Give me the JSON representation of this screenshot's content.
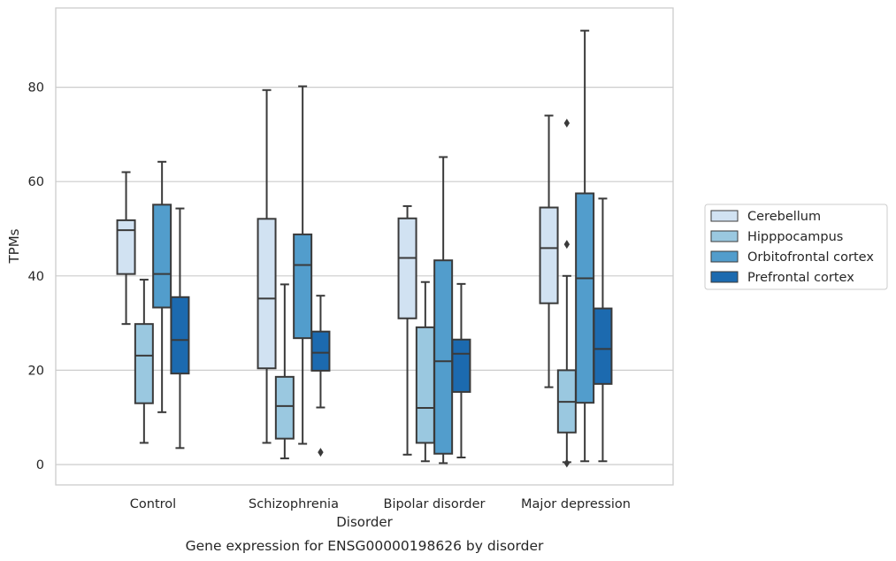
{
  "chart_data": {
    "type": "boxplot",
    "title": "Gene expression for ENSG00000198626 by disorder",
    "xlabel": "Disorder",
    "ylabel": "TPMs",
    "ylim": [
      -4,
      97
    ],
    "yticks": [
      0,
      20,
      40,
      60,
      80
    ],
    "grid": "horizontal",
    "legend_position": "right",
    "categories": [
      "Control",
      "Schizophrenia",
      "Bipolar disorder",
      "Major depression"
    ],
    "series": [
      {
        "name": "Cerebellum",
        "color": "#d1e2f2",
        "boxes": [
          {
            "whislo": 29.8,
            "q1": 40.4,
            "med": 49.7,
            "q3": 51.8,
            "whishi": 62.0,
            "fliers": []
          },
          {
            "whislo": 4.6,
            "q1": 20.4,
            "med": 35.2,
            "q3": 52.1,
            "whishi": 79.4,
            "fliers": []
          },
          {
            "whislo": 2.1,
            "q1": 31.0,
            "med": 43.8,
            "q3": 52.2,
            "whishi": 54.8,
            "fliers": []
          },
          {
            "whislo": 16.4,
            "q1": 34.2,
            "med": 45.9,
            "q3": 54.5,
            "whishi": 74.0,
            "fliers": []
          }
        ]
      },
      {
        "name": "Hipppocampus",
        "color": "#9ac8e0",
        "boxes": [
          {
            "whislo": 4.6,
            "q1": 13.0,
            "med": 23.1,
            "q3": 29.8,
            "whishi": 39.2,
            "fliers": []
          },
          {
            "whislo": 1.3,
            "q1": 5.5,
            "med": 12.4,
            "q3": 18.6,
            "whishi": 38.2,
            "fliers": []
          },
          {
            "whislo": 0.7,
            "q1": 4.6,
            "med": 12.0,
            "q3": 29.1,
            "whishi": 38.7,
            "fliers": []
          },
          {
            "whislo": 0.5,
            "q1": 6.8,
            "med": 13.3,
            "q3": 20.0,
            "whishi": 40.0,
            "fliers": [
              0.3,
              46.7,
              72.4
            ]
          }
        ]
      },
      {
        "name": "Orbitofrontal cortex",
        "color": "#529dcc",
        "boxes": [
          {
            "whislo": 11.1,
            "q1": 33.3,
            "med": 40.4,
            "q3": 55.1,
            "whishi": 64.2,
            "fliers": []
          },
          {
            "whislo": 4.4,
            "q1": 26.8,
            "med": 42.3,
            "q3": 48.8,
            "whishi": 80.2,
            "fliers": []
          },
          {
            "whislo": 0.3,
            "q1": 2.3,
            "med": 21.9,
            "q3": 43.3,
            "whishi": 65.2,
            "fliers": []
          },
          {
            "whislo": 0.7,
            "q1": 13.1,
            "med": 39.5,
            "q3": 57.5,
            "whishi": 92.0,
            "fliers": []
          }
        ]
      },
      {
        "name": "Prefrontal cortex",
        "color": "#1c6aaf",
        "boxes": [
          {
            "whislo": 3.5,
            "q1": 19.3,
            "med": 26.4,
            "q3": 35.5,
            "whishi": 54.3,
            "fliers": []
          },
          {
            "whislo": 12.1,
            "q1": 19.9,
            "med": 23.7,
            "q3": 28.2,
            "whishi": 35.8,
            "fliers": [
              2.6
            ]
          },
          {
            "whislo": 1.5,
            "q1": 15.4,
            "med": 23.5,
            "q3": 26.5,
            "whishi": 38.3,
            "fliers": []
          },
          {
            "whislo": 0.7,
            "q1": 17.1,
            "med": 24.5,
            "q3": 33.1,
            "whishi": 56.4,
            "fliers": []
          }
        ]
      }
    ]
  }
}
